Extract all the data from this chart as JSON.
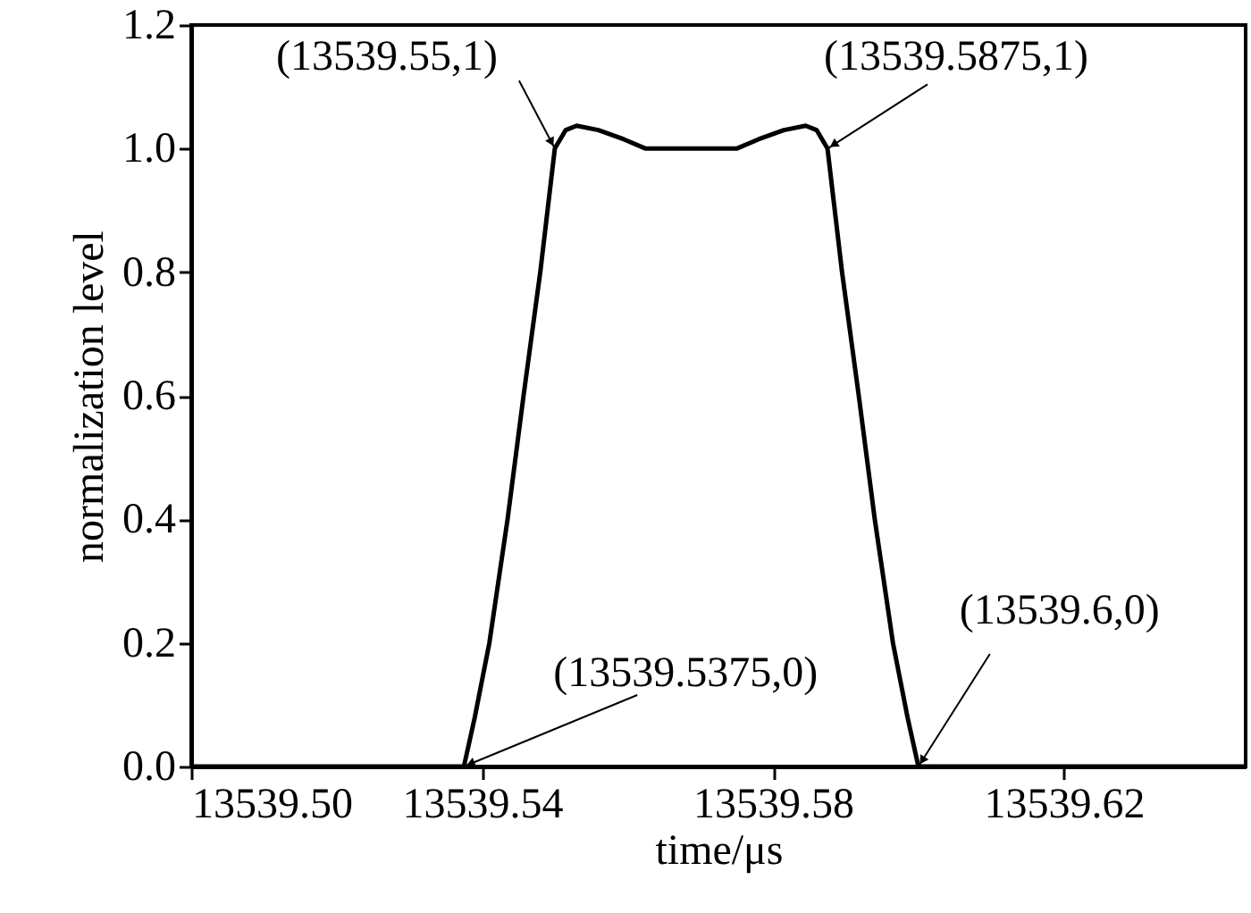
{
  "chart_data": {
    "type": "line",
    "xlabel": "time/μs",
    "ylabel": "normalization level",
    "x": [
      13539.5,
      13539.5375,
      13539.539,
      13539.541,
      13539.5435,
      13539.5457,
      13539.548,
      13539.55,
      13539.5515,
      13539.553,
      13539.556,
      13539.5595,
      13539.5625,
      13539.575,
      13539.578,
      13539.5815,
      13539.5845,
      13539.586,
      13539.5875,
      13539.5895,
      13539.5918,
      13539.594,
      13539.5965,
      13539.5985,
      13539.6,
      13539.645
    ],
    "series": [
      {
        "color": "#000000",
        "values": [
          0,
          0,
          0.08,
          0.2,
          0.4,
          0.6,
          0.8,
          1,
          1.03,
          1.037,
          1.03,
          1.015,
          1,
          1,
          1.015,
          1.03,
          1.037,
          1.03,
          1,
          0.8,
          0.6,
          0.4,
          0.2,
          0.08,
          0,
          0
        ]
      }
    ],
    "xlim": [
      13539.5,
      13539.645
    ],
    "xticks": [
      {
        "value": 13539.5,
        "label": "13539.50"
      },
      {
        "value": 13539.54,
        "label": "13539.54"
      },
      {
        "value": 13539.58,
        "label": "13539.58"
      },
      {
        "value": 13539.62,
        "label": "13539.62"
      }
    ],
    "ylim": [
      0,
      1.2
    ],
    "yticks": [
      {
        "value": 0,
        "label": "0.0"
      },
      {
        "value": 0.2,
        "label": "0.2"
      },
      {
        "value": 0.4,
        "label": "0.4"
      },
      {
        "value": 0.6,
        "label": "0.6"
      },
      {
        "value": 0.8,
        "label": "0.8"
      },
      {
        "value": 1,
        "label": "1.0"
      },
      {
        "value": 1.2,
        "label": "1.2"
      }
    ],
    "annotations": [
      {
        "text": "(13539.55,1)",
        "x": 13539.55,
        "y": 1
      },
      {
        "text": "(13539.5875,1)",
        "x": 13539.5875,
        "y": 1
      },
      {
        "text": "(13539.5375,0)",
        "x": 13539.5375,
        "y": 0
      },
      {
        "text": "(13539.6,0)",
        "x": 13539.6,
        "y": 0
      }
    ],
    "grid": false,
    "line_style": "solid"
  }
}
